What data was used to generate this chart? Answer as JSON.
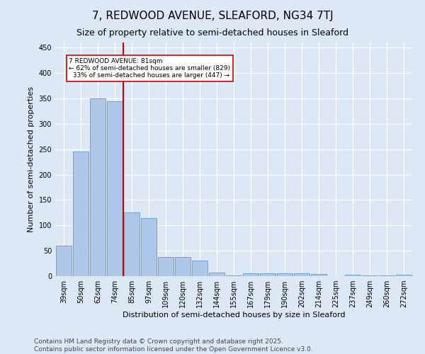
{
  "title1": "7, REDWOOD AVENUE, SLEAFORD, NG34 7TJ",
  "title2": "Size of property relative to semi-detached houses in Sleaford",
  "xlabel": "Distribution of semi-detached houses by size in Sleaford",
  "ylabel": "Number of semi-detached properties",
  "categories": [
    "39sqm",
    "50sqm",
    "62sqm",
    "74sqm",
    "85sqm",
    "97sqm",
    "109sqm",
    "120sqm",
    "132sqm",
    "144sqm",
    "155sqm",
    "167sqm",
    "179sqm",
    "190sqm",
    "202sqm",
    "214sqm",
    "225sqm",
    "237sqm",
    "249sqm",
    "260sqm",
    "272sqm"
  ],
  "values": [
    60,
    245,
    350,
    345,
    125,
    115,
    38,
    38,
    30,
    7,
    2,
    5,
    5,
    6,
    5,
    4,
    0,
    3,
    1,
    1,
    3
  ],
  "bar_color": "#aec6e8",
  "bar_edge_color": "#5a9fd4",
  "vline_x": 4.0,
  "vline_color": "#cc0000",
  "annotation_text": "7 REDWOOD AVENUE: 81sqm\n← 62% of semi-detached houses are smaller (829)\n  33% of semi-detached houses are larger (447) →",
  "annotation_box_color": "#ffffff",
  "annotation_box_edge": "#cc0000",
  "ylim": [
    0,
    460
  ],
  "yticks": [
    0,
    50,
    100,
    150,
    200,
    250,
    300,
    350,
    400,
    450
  ],
  "footnote": "Contains HM Land Registry data © Crown copyright and database right 2025.\nContains public sector information licensed under the Open Government Licence v3.0.",
  "bg_color": "#dce8f5",
  "grid_color": "#ffffff",
  "title1_fontsize": 11,
  "title2_fontsize": 9,
  "axis_label_fontsize": 8,
  "tick_fontsize": 7,
  "footnote_fontsize": 6.5
}
